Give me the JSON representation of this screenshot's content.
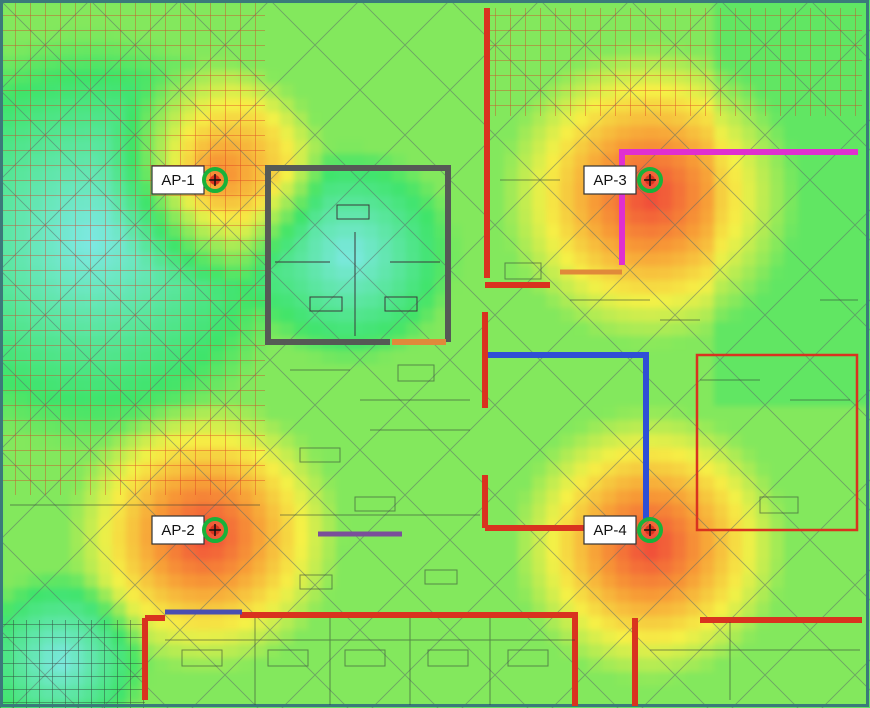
{
  "access_points": [
    {
      "id": "ap1",
      "label": "AP-1"
    },
    {
      "id": "ap2",
      "label": "AP-2"
    },
    {
      "id": "ap3",
      "label": "AP-3"
    },
    {
      "id": "ap4",
      "label": "AP-4"
    }
  ],
  "colors": {
    "strong": "#f0433a",
    "good": "#f79a36",
    "fair": "#f6f046",
    "ok": "#3fe46a",
    "weak": "#7ee8e4",
    "wall_red": "#d9331f",
    "wall_gray": "#555a55",
    "wall_blue": "#2f4fd6",
    "wall_magenta": "#e02fd0",
    "wall_orange": "#e0893a",
    "ap_marker": "#19b23a"
  }
}
